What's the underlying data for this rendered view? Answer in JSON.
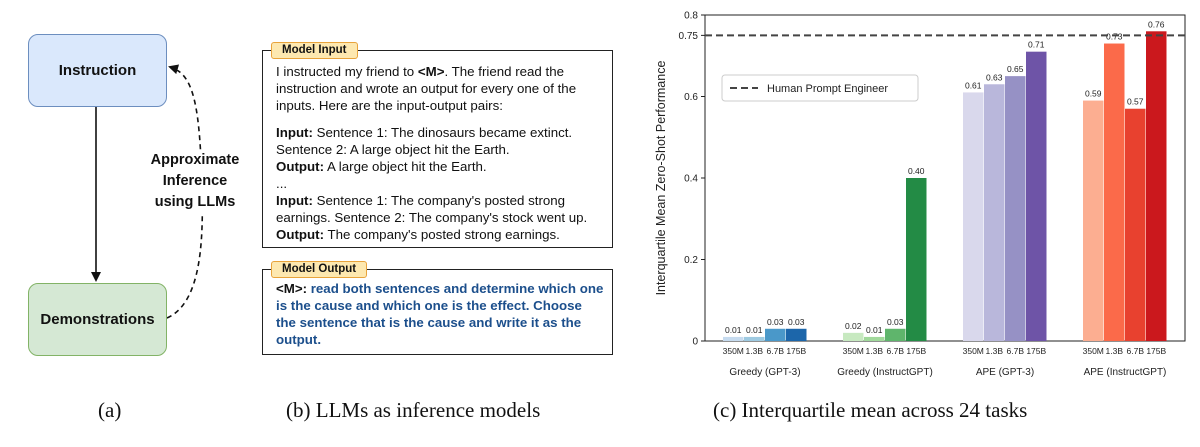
{
  "panel_a": {
    "instruction_label": "Instruction",
    "demonstrations_label": "Demonstrations",
    "approx_line1": "Approximate",
    "approx_line2": "Inference",
    "approx_line3": "using LLMs"
  },
  "panel_b": {
    "input_tag": "Model Input",
    "output_tag": "Model Output",
    "input_intro_before": "I instructed my friend to ",
    "input_intro_mtag": "<M>",
    "input_intro_after": ". The friend read the instruction and wrote an output for every one of the inputs. Here are the input-output pairs:",
    "input_label": "Input:",
    "output_label": "Output:",
    "ex1_input": " Sentence 1: The dinosaurs became extinct. Sentence 2: A large object hit the Earth.",
    "ex1_output": " A large object hit the Earth.",
    "ellipsis": "...",
    "ex2_input": " Sentence 1: The company's posted strong earnings. Sentence 2: The company's stock went up.",
    "ex2_output": " The company's posted strong earnings.",
    "output_mtag": "<M>:",
    "output_text": " read both sentences and determine which one is the cause and which one is the effect. Choose the sentence that is the cause and write it as the output."
  },
  "captions": {
    "a": "(a)",
    "b": "(b) LLMs as inference models",
    "c": "(c) Interquartile mean across 24 tasks"
  },
  "chart_data": {
    "type": "bar",
    "ylabel": "Interquartile Mean Zero-Shot Performance",
    "ylim": [
      0,
      0.8
    ],
    "yticks": [
      "0",
      "0.2",
      "0.4",
      "0.6",
      "0.75",
      "0.8"
    ],
    "groups": [
      {
        "name": "Greedy (GPT-3)",
        "sizes": [
          "350M",
          "1.3B",
          "6.7B",
          "175B"
        ],
        "values": [
          0.01,
          0.01,
          0.03,
          0.03
        ],
        "labels": [
          "0.01",
          "0.01",
          "0.03",
          "0.03"
        ],
        "colors": [
          "#c6dbef",
          "#9ecae1",
          "#4a98c9",
          "#1c66aa"
        ]
      },
      {
        "name": "Greedy (InstructGPT)",
        "sizes": [
          "350M",
          "1.3B",
          "6.7B",
          "175B"
        ],
        "values": [
          0.02,
          0.01,
          0.03,
          0.4
        ],
        "labels": [
          "0.02",
          "0.01",
          "0.03",
          "0.40"
        ],
        "colors": [
          "#c7e9c0",
          "#a1d99b",
          "#5fb56c",
          "#238b45"
        ]
      },
      {
        "name": "APE (GPT-3)",
        "sizes": [
          "350M",
          "1.3B",
          "6.7B",
          "175B"
        ],
        "values": [
          0.61,
          0.63,
          0.65,
          0.71
        ],
        "labels": [
          "0.61",
          "0.63",
          "0.65",
          "0.71"
        ],
        "colors": [
          "#d9d8ec",
          "#b9b7db",
          "#9691c5",
          "#6e54a7"
        ]
      },
      {
        "name": "APE (InstructGPT)",
        "sizes": [
          "350M",
          "1.3B",
          "6.7B",
          "175B"
        ],
        "values": [
          0.59,
          0.73,
          0.57,
          0.76
        ],
        "labels": [
          "0.59",
          "0.73",
          "0.57",
          "0.76"
        ],
        "colors": [
          "#fcae91",
          "#fb6a4a",
          "#e8412f",
          "#cb181d"
        ]
      }
    ],
    "reference_line": {
      "name": "Human Prompt Engineer",
      "value": 0.75,
      "color": "#444444"
    },
    "legend_position": "top-left"
  }
}
